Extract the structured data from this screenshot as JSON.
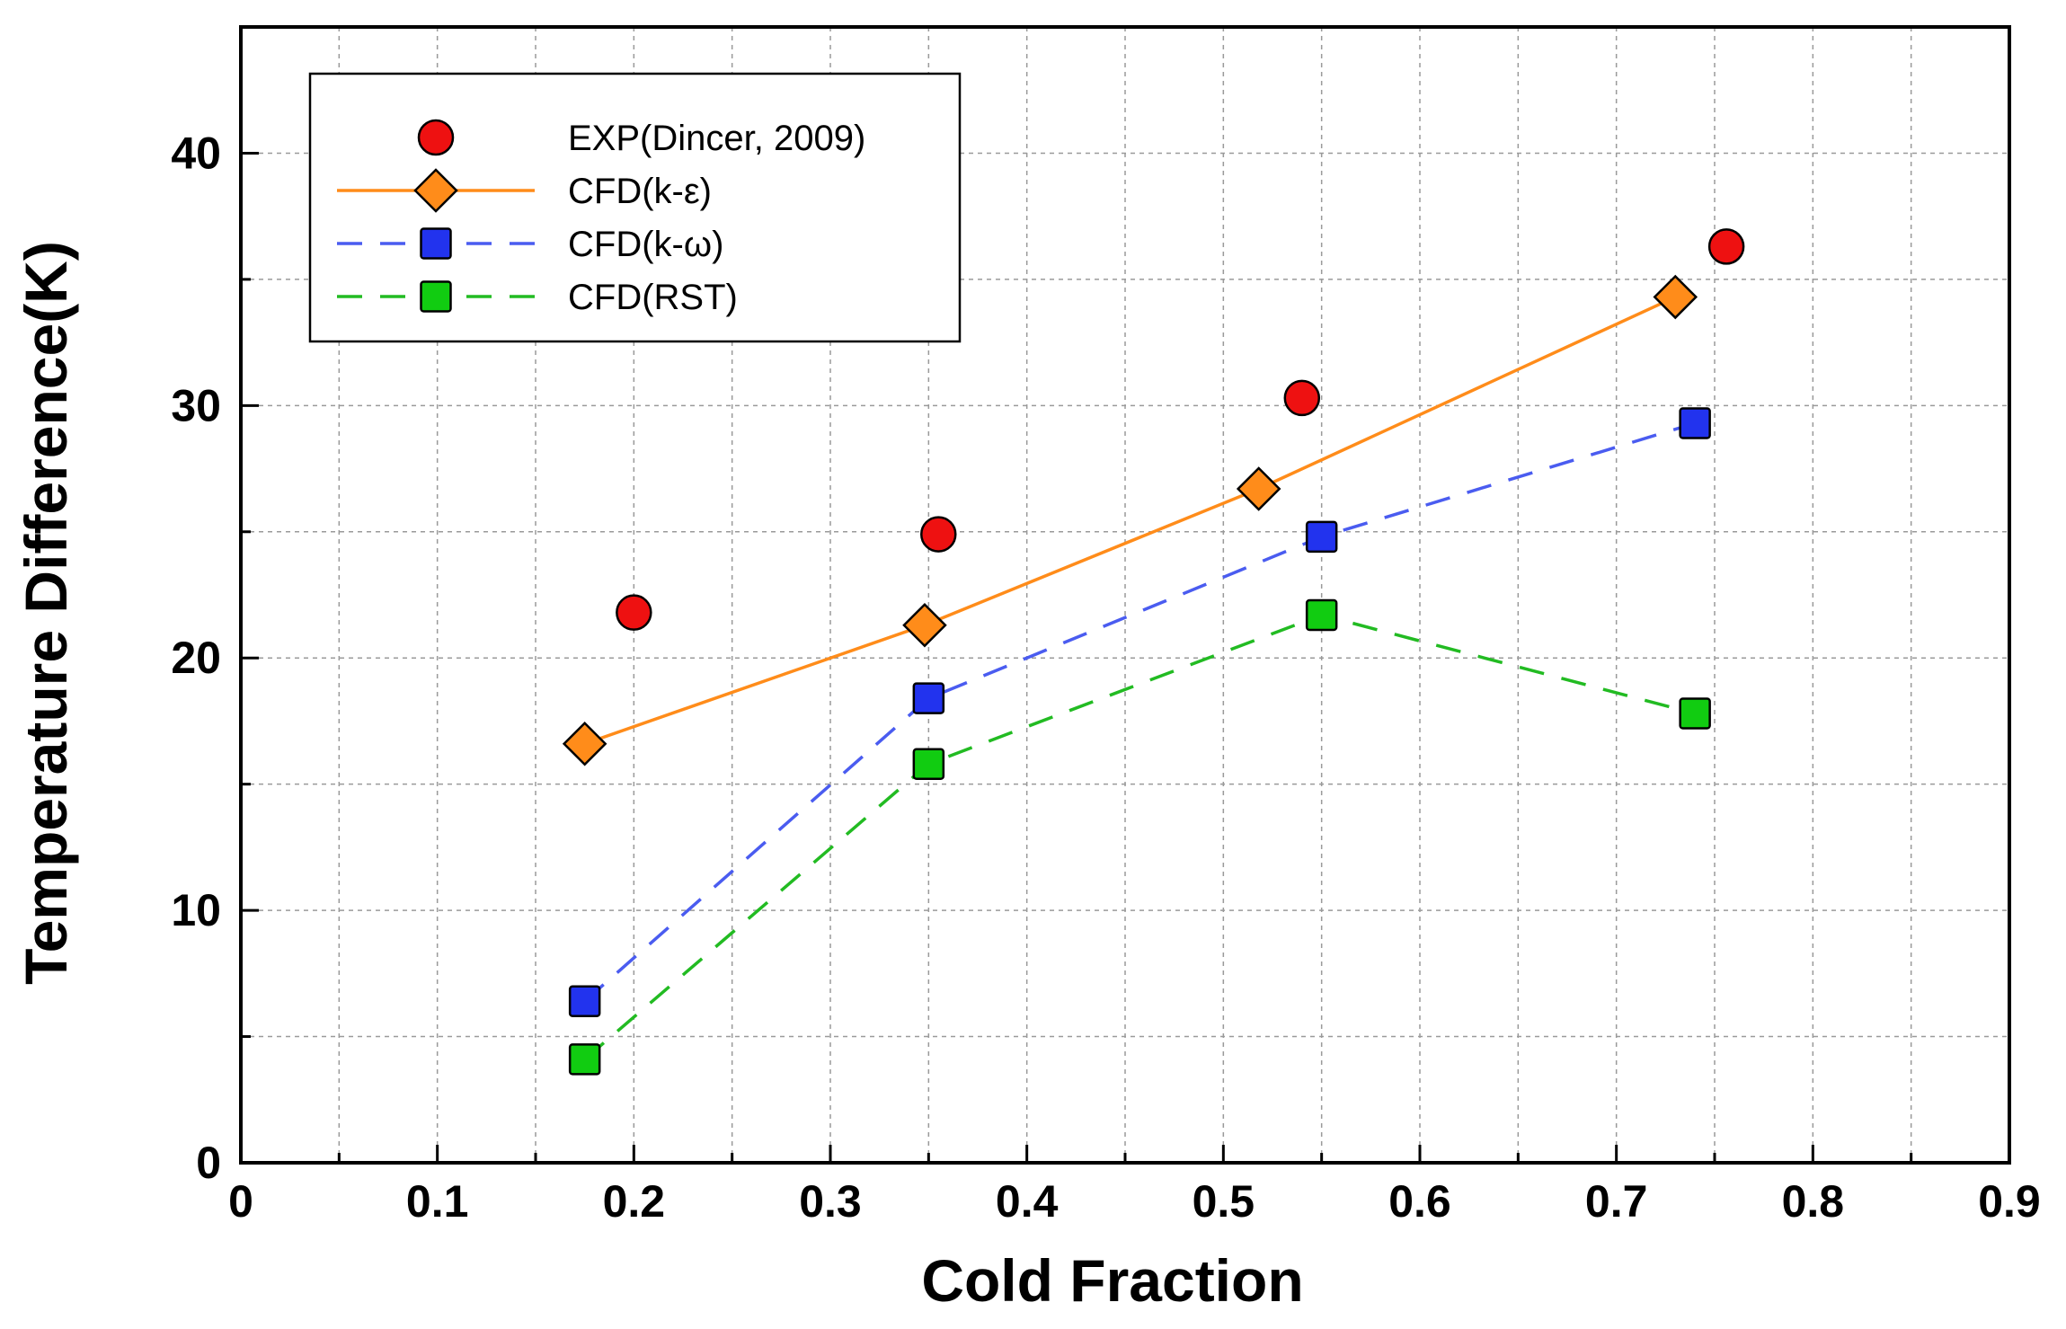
{
  "chart_data": {
    "type": "line",
    "title": "",
    "xlabel": "Cold Fraction",
    "ylabel": "Temperature Difference(K)",
    "xlim": [
      0,
      0.9
    ],
    "ylim": [
      0,
      45
    ],
    "xticks": [
      0,
      0.1,
      0.2,
      0.3,
      0.4,
      0.5,
      0.6,
      0.7,
      0.8,
      0.9
    ],
    "xtick_labels": [
      "0",
      "0.1",
      "0.2",
      "0.3",
      "0.4",
      "0.5",
      "0.6",
      "0.7",
      "0.8",
      "0.9"
    ],
    "yticks": [
      0,
      10,
      20,
      30,
      40
    ],
    "ytick_labels": [
      "0",
      "10",
      "20",
      "30",
      "40"
    ],
    "grid": true,
    "legend_position": "top-left",
    "series": [
      {
        "name": "EXP(Dincer, 2009)",
        "marker": "circle",
        "line": "none",
        "color": "#ee1111",
        "x": [
          0.2,
          0.355,
          0.54,
          0.756
        ],
        "y": [
          21.8,
          24.9,
          30.3,
          36.3
        ]
      },
      {
        "name": "CFD(k-ε)",
        "marker": "diamond",
        "line": "solid",
        "color": "#ff8c1a",
        "x": [
          0.175,
          0.348,
          0.518,
          0.73
        ],
        "y": [
          16.6,
          21.3,
          26.7,
          34.3
        ]
      },
      {
        "name": "CFD(k-ω)",
        "marker": "square",
        "line": "dashed",
        "color": "#2233ee",
        "line_color": "#4a5cf0",
        "x": [
          0.175,
          0.35,
          0.55,
          0.74
        ],
        "y": [
          6.4,
          18.4,
          24.8,
          29.3
        ]
      },
      {
        "name": "CFD(RST)",
        "marker": "square",
        "line": "dashed",
        "color": "#11cc11",
        "line_color": "#22bb22",
        "x": [
          0.175,
          0.35,
          0.55,
          0.74
        ],
        "y": [
          4.1,
          15.8,
          21.7,
          17.8
        ]
      }
    ]
  }
}
